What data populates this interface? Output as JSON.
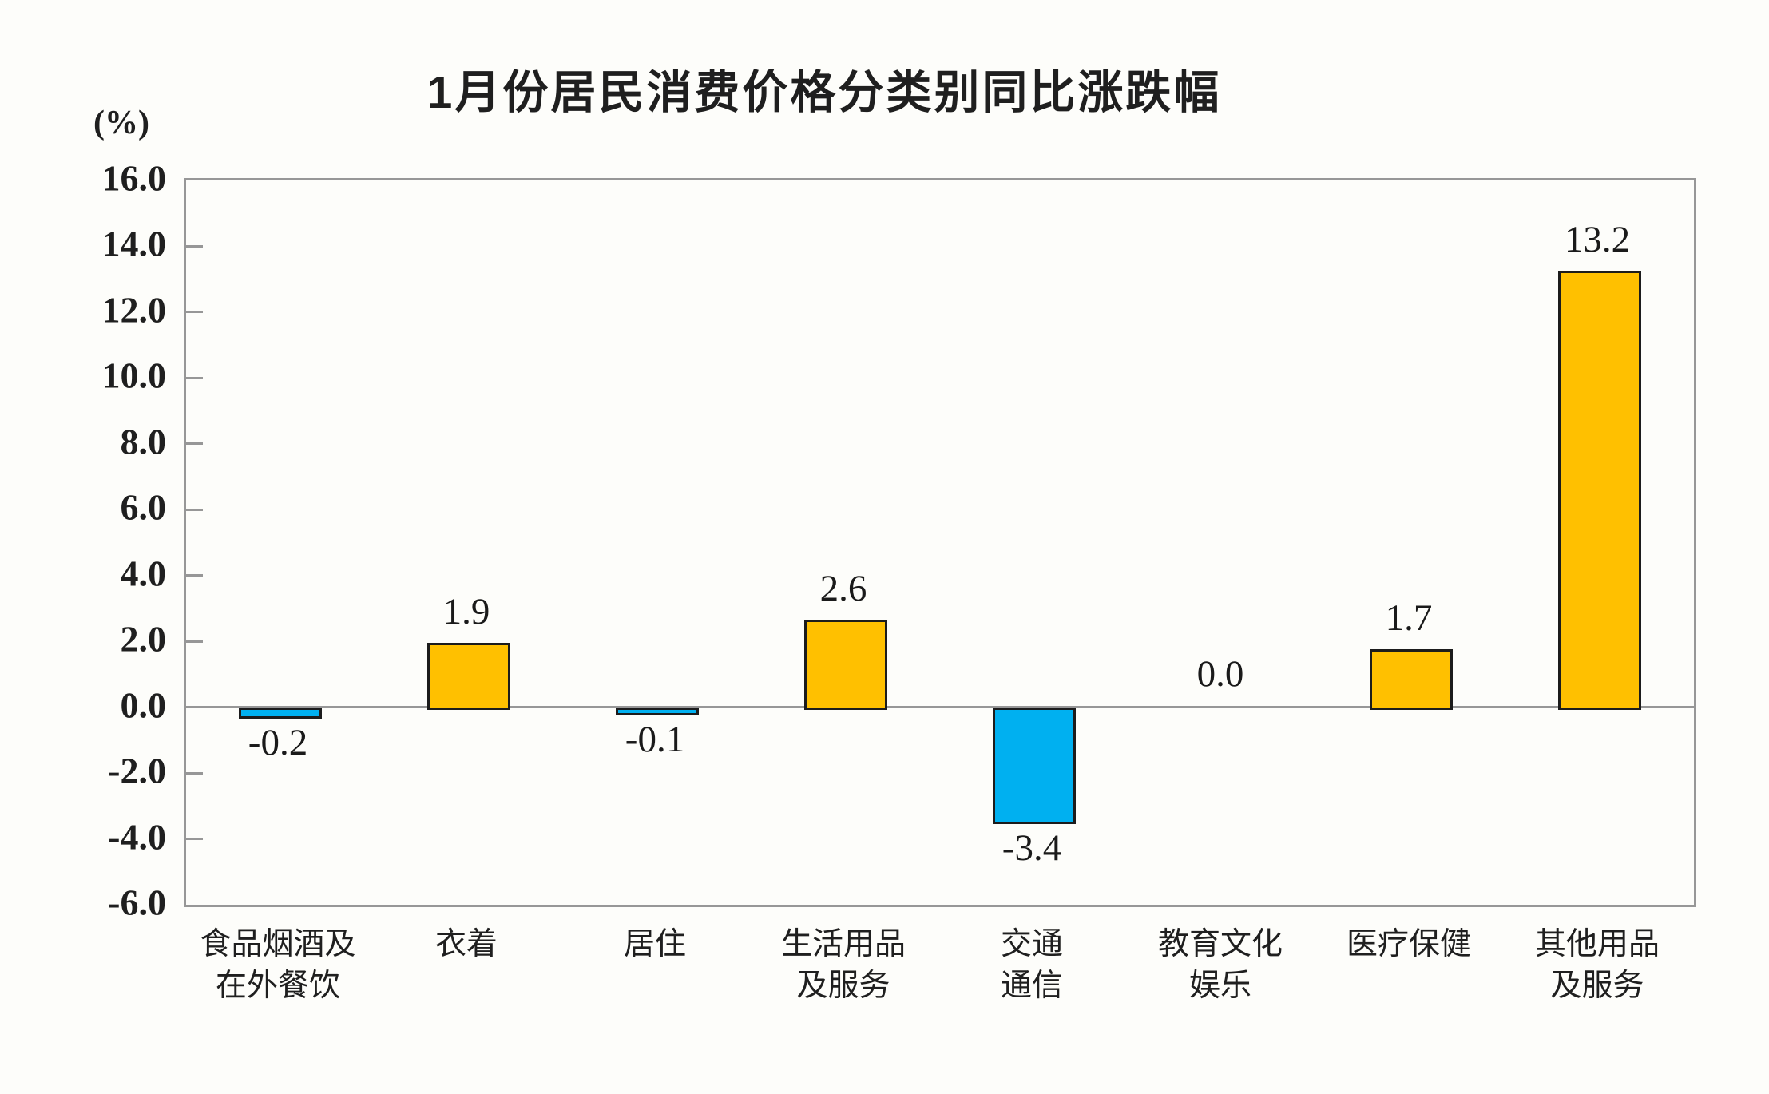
{
  "title": "1月份居民消费价格分类别同比涨跌幅",
  "unit_label": "(%)",
  "colors": {
    "positive_bar": "#FFC000",
    "negative_bar": "#00B0F0",
    "bar_border": "#1c1c1c",
    "axis": "#979797",
    "text": "#1a1a1a"
  },
  "chart_data": {
    "type": "bar",
    "title": "1月份居民消费价格分类别同比涨跌幅",
    "ylabel": "(%)",
    "xlabel": "",
    "ylim": [
      -6.0,
      16.0
    ],
    "ytick_step": 2.0,
    "yticks": [
      "16.0",
      "14.0",
      "12.0",
      "10.0",
      "8.0",
      "6.0",
      "4.0",
      "2.0",
      "0.0",
      "-2.0",
      "-4.0",
      "-6.0"
    ],
    "grid": false,
    "legend_position": "none",
    "categories": [
      "食品烟酒及\n在外餐饮",
      "衣着",
      "居住",
      "生活用品\n及服务",
      "交通\n通信",
      "教育文化\n娱乐",
      "医疗保健",
      "其他用品\n及服务"
    ],
    "values": [
      -0.2,
      1.9,
      -0.1,
      2.6,
      -3.4,
      0.0,
      1.7,
      13.2
    ],
    "value_labels": [
      "-0.2",
      "1.9",
      "-0.1",
      "2.6",
      "-3.4",
      "0.0",
      "1.7",
      "13.2"
    ]
  }
}
